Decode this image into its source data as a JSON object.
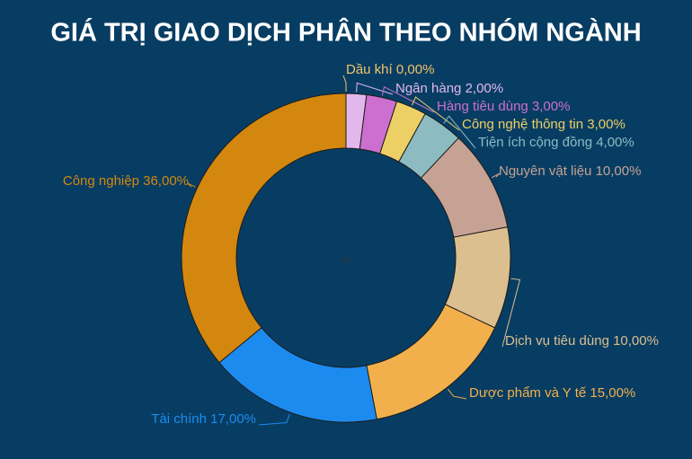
{
  "chart_data": {
    "type": "donut",
    "title": "GIÁ TRỊ GIAO DỊCH PHÂN THEO NHÓM NGÀNH",
    "center_label": "%",
    "categories": [
      "Dầu khí",
      "Ngân hàng",
      "Hàng tiêu dùng",
      "Công nghệ thông tin",
      "Tiện ích cộng đồng",
      "Nguyên vật liệu",
      "Dịch vụ tiêu dùng",
      "Dược phẩm và Y tế",
      "Tài chính",
      "Công nghiệp"
    ],
    "values": [
      0,
      2,
      3,
      3,
      4,
      10,
      10,
      15,
      17,
      36
    ],
    "value_labels": [
      "0,00%",
      "2,00%",
      "3,00%",
      "3,00%",
      "4,00%",
      "10,00%",
      "10,00%",
      "15,00%",
      "17,00%",
      "36,00%"
    ],
    "colors": [
      "#f2c466",
      "#e2b8ec",
      "#cc6fcf",
      "#ecd066",
      "#8cbcc2",
      "#c6a294",
      "#dcbf8e",
      "#f2b04c",
      "#1c8bf0",
      "#d4870f"
    ]
  }
}
